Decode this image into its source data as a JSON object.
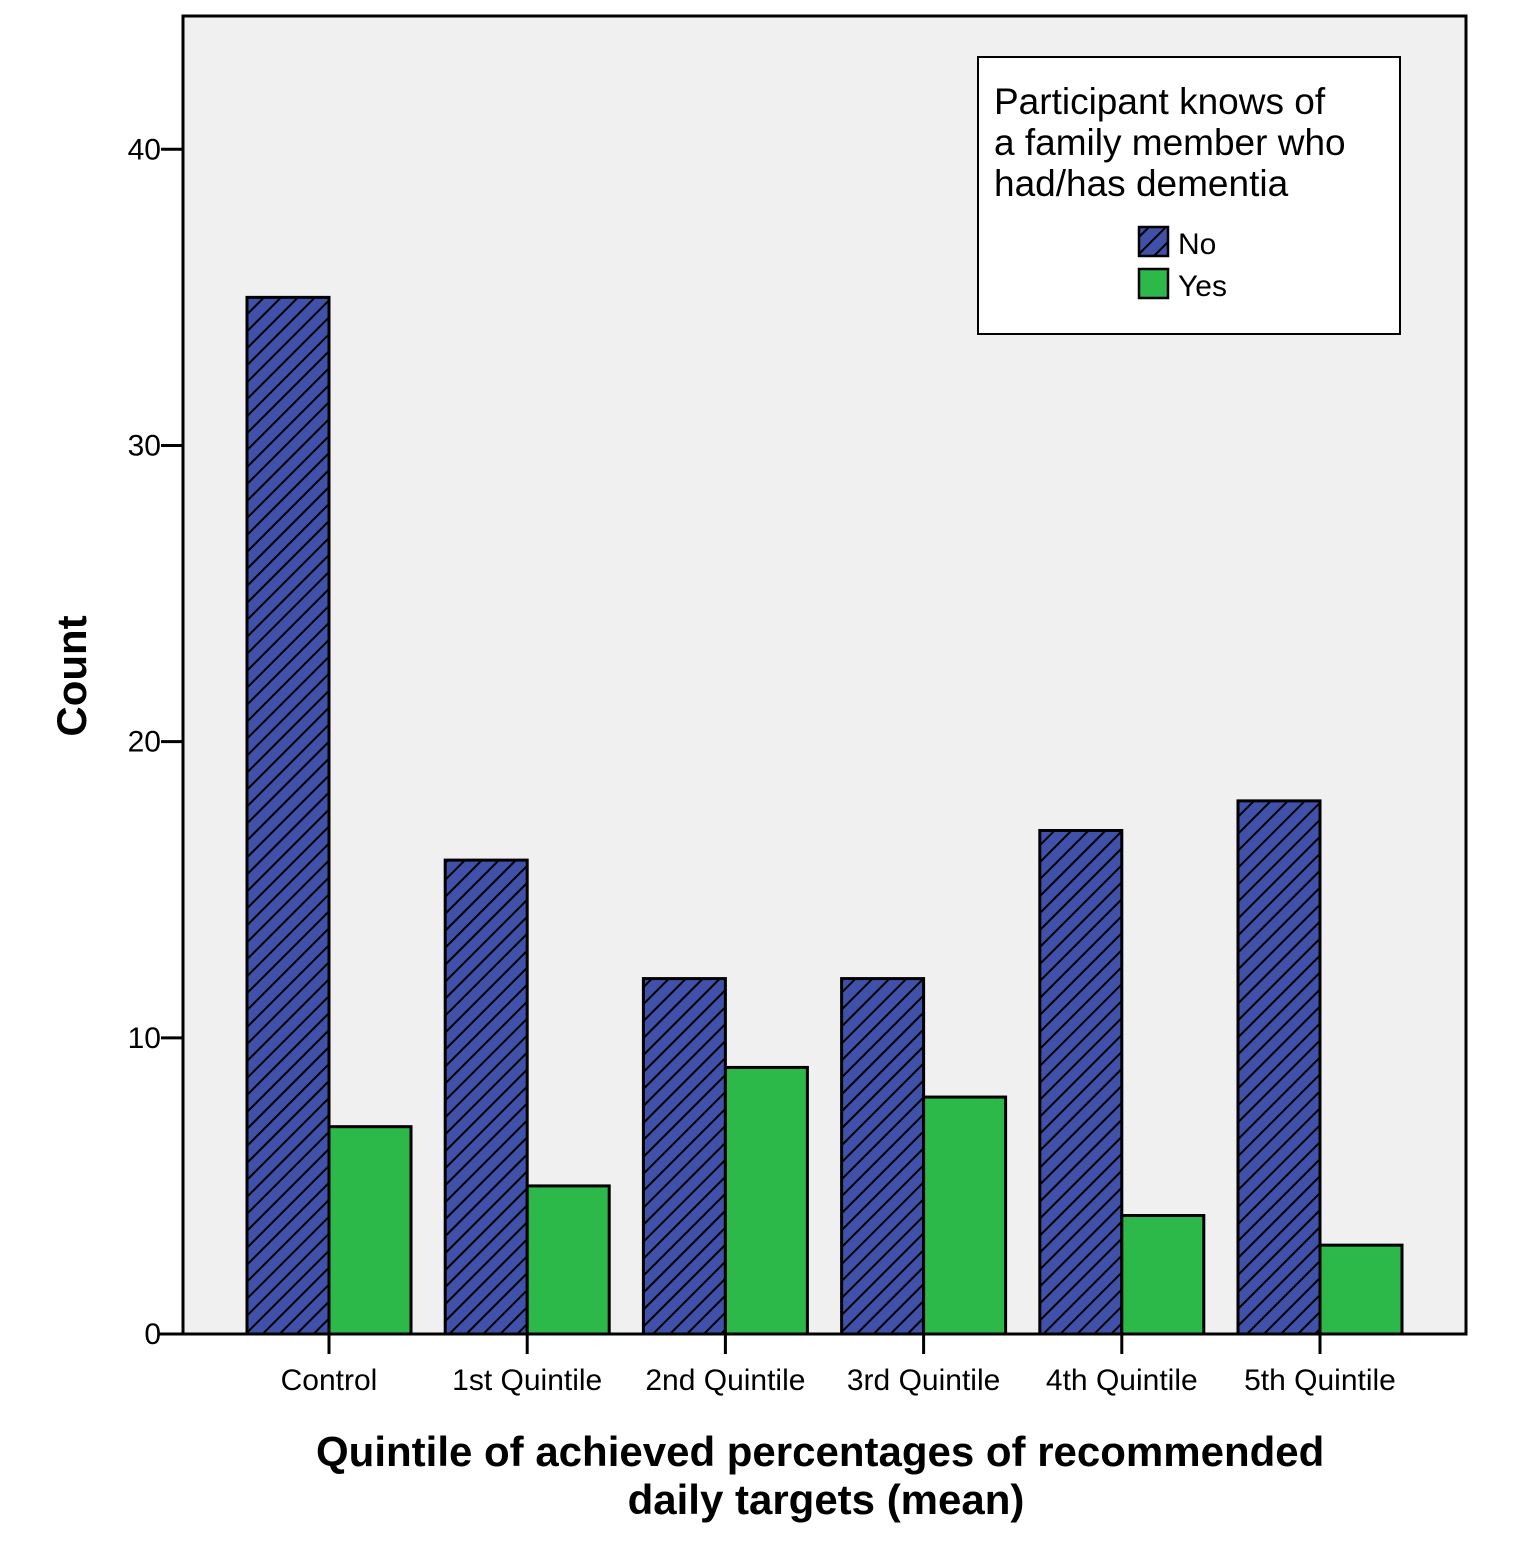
{
  "chart_data": {
    "type": "bar",
    "xlabel": "Quintile of achieved percentages of recommended daily targets (mean)",
    "xlabel_lines": [
      "Quintile of achieved percentages of recommended",
      "daily targets (mean)"
    ],
    "ylabel": "Count",
    "ylim": [
      0,
      44.5
    ],
    "yticks": [
      0,
      10,
      20,
      30,
      40
    ],
    "grid": false,
    "categories": [
      "Control",
      "1st Quintile",
      "2nd Quintile",
      "3rd Quintile",
      "4th Quintile",
      "5th Quintile"
    ],
    "series": [
      {
        "name": "No",
        "values": [
          35,
          16,
          12,
          12,
          17,
          18
        ],
        "color": "#3f51a8",
        "pattern": "diagonal-hatch"
      },
      {
        "name": "Yes",
        "values": [
          7,
          5,
          9,
          8,
          4,
          3
        ],
        "color": "#2db84a",
        "pattern": "solid"
      }
    ],
    "legend": {
      "title_lines": [
        "Participant knows of",
        "a family member who",
        "had/has dementia"
      ],
      "placement": "top-right"
    },
    "plot_background": "#f0f0f0"
  }
}
